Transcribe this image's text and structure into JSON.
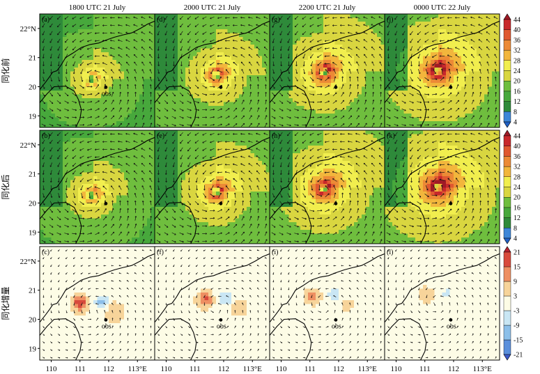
{
  "columns": [
    {
      "title": "1800  UTC  21  July",
      "storm_x": 111.4,
      "storm_y": 20.25,
      "panels": [
        "(a)",
        "(b)",
        "(c)"
      ]
    },
    {
      "title": "2000  UTC  21  July",
      "storm_x": 111.75,
      "storm_y": 20.38,
      "panels": [
        "(d)",
        "(e)",
        "(f)"
      ]
    },
    {
      "title": "2200  UTC  21  July",
      "storm_x": 111.5,
      "storm_y": 20.48,
      "panels": [
        "(g)",
        "(h)",
        "(i)"
      ]
    },
    {
      "title": "0000  UTC  22  July",
      "storm_x": 111.45,
      "storm_y": 20.55,
      "panels": [
        "(j)",
        "(k)",
        "(l)"
      ]
    }
  ],
  "rows": [
    {
      "label": "同化前",
      "field": "wind_speed"
    },
    {
      "label": "同化后",
      "field": "wind_speed"
    },
    {
      "label": "同化增量",
      "field": "increment"
    }
  ],
  "x_ticks": [
    "110",
    "111",
    "112",
    "113°E"
  ],
  "x_tick_values": [
    110,
    111,
    112,
    113
  ],
  "y_ticks": [
    "22°N",
    "21",
    "20",
    "19"
  ],
  "y_tick_values": [
    22,
    21,
    20,
    19
  ],
  "lon_range": [
    109.6,
    113.6
  ],
  "lat_range": [
    18.6,
    22.5
  ],
  "obs": {
    "label": "obs",
    "lon": 111.9,
    "lat": 19.98
  },
  "colorbar_speed": {
    "labels": [
      "4",
      "8",
      "12",
      "16",
      "20",
      "24",
      "28",
      "32",
      "36",
      "40",
      "44"
    ],
    "colors": [
      "#1f5fc4",
      "#3d86d8",
      "#2e8a3a",
      "#47a83c",
      "#6fbe3e",
      "#d9d640",
      "#f1ee4e",
      "#f2b63c",
      "#ec8a36",
      "#e05830",
      "#c8282c",
      "#a01a26"
    ]
  },
  "colorbar_increment": {
    "labels": [
      "-21",
      "-15",
      "-9",
      "-3",
      "3",
      "9",
      "15",
      "21"
    ],
    "colors": [
      "#3a59c8",
      "#5a8fdc",
      "#8cbfe9",
      "#c9e6f4",
      "#fdfce6",
      "#f7d49a",
      "#ee8f62",
      "#d84a3c",
      "#b82230"
    ]
  }
}
